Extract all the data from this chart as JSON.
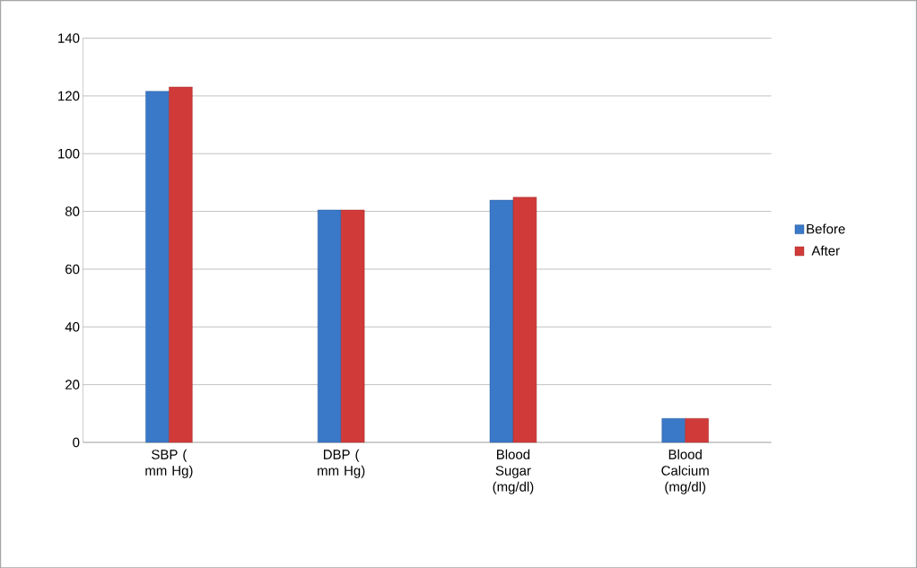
{
  "chart_data": {
    "type": "bar",
    "categories": [
      "SBP ( mm Hg)",
      "DBP ( mm Hg)",
      "Blood Sugar (mg/dl)",
      "Blood Calcium (mg/dl)"
    ],
    "series": [
      {
        "name": "Before",
        "color": "#3a78c8",
        "values": [
          121.6,
          80.5,
          83.9,
          8.3
        ]
      },
      {
        "name": "After",
        "color": "#d03a38",
        "values": [
          123.1,
          80.5,
          84.9,
          8.3
        ]
      }
    ],
    "ylim": [
      0,
      140
    ],
    "yticks": [
      0,
      20,
      40,
      60,
      80,
      100,
      120,
      140
    ],
    "grid": "y",
    "legend": "right"
  }
}
